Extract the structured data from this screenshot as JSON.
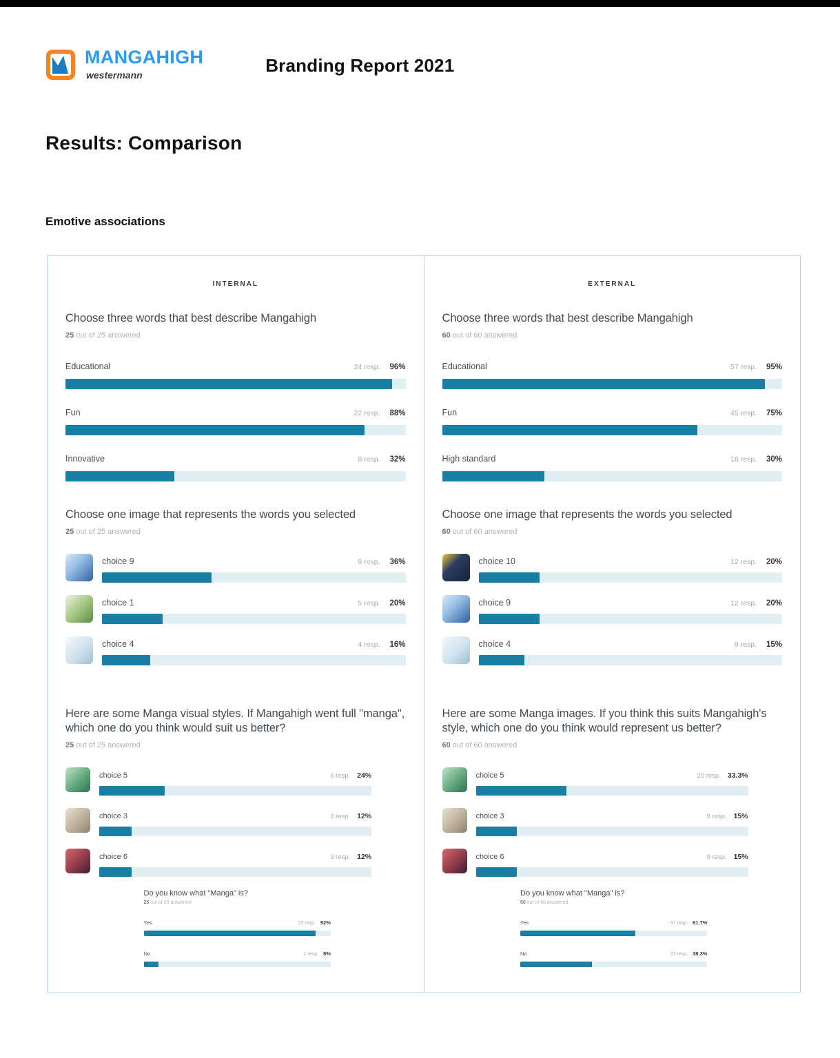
{
  "page": {
    "logo": {
      "brand": "MANGAHIGH",
      "subbrand": "westermann"
    },
    "report_title": "Branding Report 2021",
    "section_title": "Results: Comparison",
    "subsection_title": "Emotive associations"
  },
  "colors": {
    "top_bar": "#000000",
    "bar_fill": "#1b7ea4",
    "bar_track": "#e1eef3",
    "panel_border": "#a9d7e8",
    "logo_blue": "#2b9af3",
    "logo_orange": "#f5861f"
  },
  "columns": [
    {
      "header": "INTERNAL",
      "questions": [
        {
          "title": "Choose three words that best describe Mangahigh",
          "answered_count": "25",
          "answered_rest": " out of 25 answered",
          "bars": [
            {
              "label": "Educational",
              "resp": "24 resp.",
              "pct_label": "96%",
              "pct": 96
            },
            {
              "label": "Fun",
              "resp": "22 resp.",
              "pct_label": "88%",
              "pct": 88
            },
            {
              "label": "Innovative",
              "resp": "8 resp.",
              "pct_label": "32%",
              "pct": 32
            }
          ]
        },
        {
          "title": "Choose one image that represents the words you selected",
          "answered_count": "25",
          "answered_rest": " out of 25 answered",
          "bars": [
            {
              "label": "choice 9",
              "resp": "9 resp.",
              "pct_label": "36%",
              "pct": 36,
              "thumb": "boy-science-illustration"
            },
            {
              "label": "choice 1",
              "resp": "5 resp.",
              "pct_label": "20%",
              "pct": 20,
              "thumb": "green-plants-illustration"
            },
            {
              "label": "choice 4",
              "resp": "4 resp.",
              "pct_label": "16%",
              "pct": 16,
              "thumb": "light-desk-illustration"
            }
          ]
        },
        {
          "title": "Here are some Manga visual styles. If Mangahigh went full \"manga\", which one do you think would suit us better?",
          "answered_count": "25",
          "answered_rest": " out of 25 answered",
          "bars": [
            {
              "label": "choice 5",
              "resp": "6 resp.",
              "pct_label": "24%",
              "pct": 24,
              "thumb": "anime-group-green"
            },
            {
              "label": "choice 3",
              "resp": "3 resp.",
              "pct_label": "12%",
              "pct": 12,
              "thumb": "sepia-crowd-photo"
            },
            {
              "label": "choice 6",
              "resp": "3 resp.",
              "pct_label": "12%",
              "pct": 12,
              "thumb": "dark-manga-characters"
            }
          ]
        }
      ],
      "mini": {
        "title": "Do you know what \"Manga\" is?",
        "answered_count": "25",
        "answered_rest": " out of 25 answered",
        "bars": [
          {
            "label": "Yes",
            "resp": "23 resp.",
            "pct_label": "92%",
            "pct": 92
          },
          {
            "label": "No",
            "resp": "2 resp.",
            "pct_label": "8%",
            "pct": 8
          }
        ]
      }
    },
    {
      "header": "EXTERNAL",
      "questions": [
        {
          "title": "Choose three words that best describe Mangahigh",
          "answered_count": "60",
          "answered_rest": " out of 60 answered",
          "bars": [
            {
              "label": "Educational",
              "resp": "57 resp.",
              "pct_label": "95%",
              "pct": 95
            },
            {
              "label": "Fun",
              "resp": "45 resp.",
              "pct_label": "75%",
              "pct": 75
            },
            {
              "label": "High standard",
              "resp": "18 resp.",
              "pct_label": "30%",
              "pct": 30
            }
          ]
        },
        {
          "title": "Choose one image that represents the words you selected",
          "answered_count": "60",
          "answered_rest": " out of 60 answered",
          "bars": [
            {
              "label": "choice 10",
              "resp": "12 resp.",
              "pct_label": "20%",
              "pct": 20,
              "thumb": "dark-navy-yellow-illustration"
            },
            {
              "label": "choice 9",
              "resp": "12 resp.",
              "pct_label": "20%",
              "pct": 20,
              "thumb": "boy-science-illustration"
            },
            {
              "label": "choice 4",
              "resp": "9 resp.",
              "pct_label": "15%",
              "pct": 15,
              "thumb": "light-desk-illustration"
            }
          ]
        },
        {
          "title": "Here are some Manga images. If you think this suits Mangahigh's style, which one do you think would represent us better?",
          "answered_count": "60",
          "answered_rest": " out of 60 answered",
          "bars": [
            {
              "label": "choice 5",
              "resp": "20 resp.",
              "pct_label": "33.3%",
              "pct": 33.3,
              "thumb": "anime-group-green"
            },
            {
              "label": "choice 3",
              "resp": "9 resp.",
              "pct_label": "15%",
              "pct": 15,
              "thumb": "sepia-crowd-photo"
            },
            {
              "label": "choice 6",
              "resp": "9 resp.",
              "pct_label": "15%",
              "pct": 15,
              "thumb": "dark-manga-characters"
            }
          ]
        }
      ],
      "mini": {
        "title": "Do you know what \"Manga\" is?",
        "answered_count": "60",
        "answered_rest": " out of 60 answered",
        "bars": [
          {
            "label": "Yes",
            "resp": "37 resp.",
            "pct_label": "61.7%",
            "pct": 61.7
          },
          {
            "label": "No",
            "resp": "23 resp.",
            "pct_label": "38.3%",
            "pct": 38.3
          }
        ]
      }
    }
  ],
  "chart_data": [
    {
      "type": "bar",
      "group": "INTERNAL",
      "title": "Choose three words that best describe Mangahigh",
      "answered": "25 out of 25 answered",
      "categories": [
        "Educational",
        "Fun",
        "Innovative"
      ],
      "responses": [
        24,
        22,
        8
      ],
      "values_pct": [
        96,
        88,
        32
      ],
      "xlim": [
        0,
        100
      ],
      "orientation": "horizontal"
    },
    {
      "type": "bar",
      "group": "INTERNAL",
      "title": "Choose one image that represents the words you selected",
      "answered": "25 out of 25 answered",
      "categories": [
        "choice 9",
        "choice 1",
        "choice 4"
      ],
      "responses": [
        9,
        5,
        4
      ],
      "values_pct": [
        36,
        20,
        16
      ],
      "xlim": [
        0,
        100
      ],
      "orientation": "horizontal"
    },
    {
      "type": "bar",
      "group": "INTERNAL",
      "title": "Here are some Manga visual styles. If Mangahigh went full \"manga\", which one do you think would suit us better?",
      "answered": "25 out of 25 answered",
      "categories": [
        "choice 5",
        "choice 3",
        "choice 6"
      ],
      "responses": [
        6,
        3,
        3
      ],
      "values_pct": [
        24,
        12,
        12
      ],
      "xlim": [
        0,
        100
      ],
      "orientation": "horizontal"
    },
    {
      "type": "bar",
      "group": "INTERNAL",
      "title": "Do you know what \"Manga\" is?",
      "answered": "25 out of 25 answered",
      "categories": [
        "Yes",
        "No"
      ],
      "responses": [
        23,
        2
      ],
      "values_pct": [
        92,
        8
      ],
      "xlim": [
        0,
        100
      ],
      "orientation": "horizontal"
    },
    {
      "type": "bar",
      "group": "EXTERNAL",
      "title": "Choose three words that best describe Mangahigh",
      "answered": "60 out of 60 answered",
      "categories": [
        "Educational",
        "Fun",
        "High standard"
      ],
      "responses": [
        57,
        45,
        18
      ],
      "values_pct": [
        95,
        75,
        30
      ],
      "xlim": [
        0,
        100
      ],
      "orientation": "horizontal"
    },
    {
      "type": "bar",
      "group": "EXTERNAL",
      "title": "Choose one image that represents the words you selected",
      "answered": "60 out of 60 answered",
      "categories": [
        "choice 10",
        "choice 9",
        "choice 4"
      ],
      "responses": [
        12,
        12,
        9
      ],
      "values_pct": [
        20,
        20,
        15
      ],
      "xlim": [
        0,
        100
      ],
      "orientation": "horizontal"
    },
    {
      "type": "bar",
      "group": "EXTERNAL",
      "title": "Here are some Manga images. If you think this suits Mangahigh's style, which one do you think would represent us better?",
      "answered": "60 out of 60 answered",
      "categories": [
        "choice 5",
        "choice 3",
        "choice 6"
      ],
      "responses": [
        20,
        9,
        9
      ],
      "values_pct": [
        33.3,
        15,
        15
      ],
      "xlim": [
        0,
        100
      ],
      "orientation": "horizontal"
    },
    {
      "type": "bar",
      "group": "EXTERNAL",
      "title": "Do you know what \"Manga\" is?",
      "answered": "60 out of 60 answered",
      "categories": [
        "Yes",
        "No"
      ],
      "responses": [
        37,
        23
      ],
      "values_pct": [
        61.7,
        38.3
      ],
      "xlim": [
        0,
        100
      ],
      "orientation": "horizontal"
    }
  ]
}
